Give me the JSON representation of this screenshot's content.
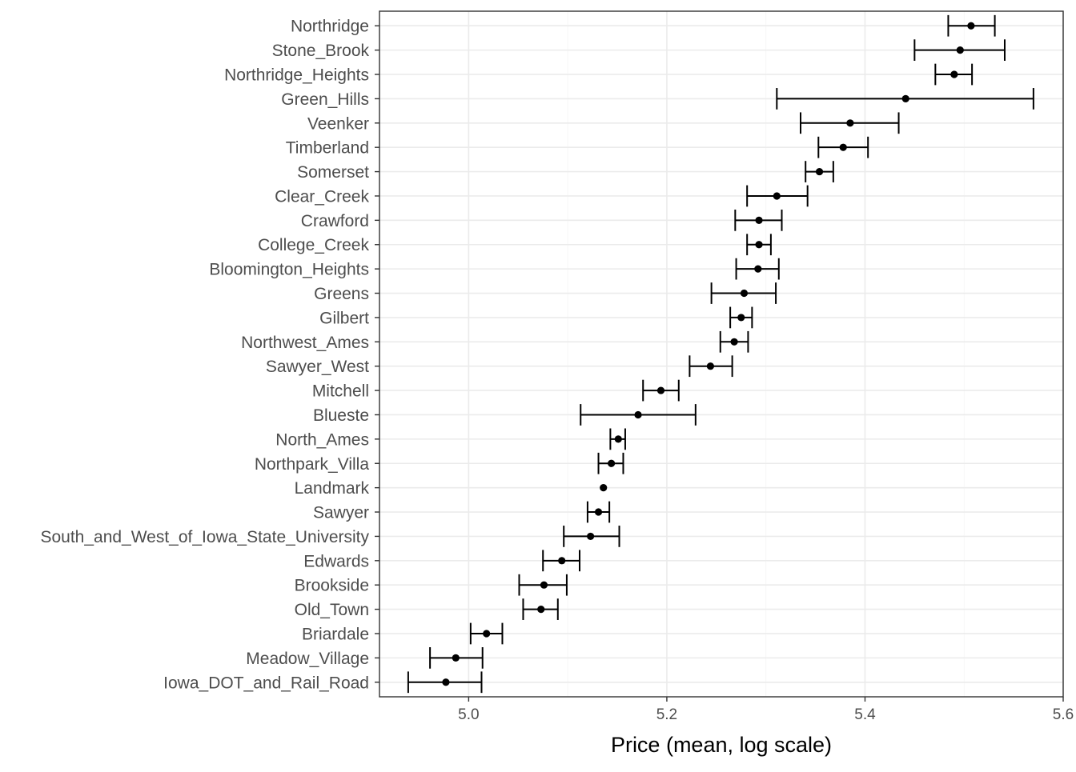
{
  "chart_data": {
    "type": "scatter",
    "subtype": "point-range (dot with error bars)",
    "xlabel": "Price (mean, log scale)",
    "ylabel": "",
    "xlim": [
      4.91,
      5.6
    ],
    "xticks": [
      5.0,
      5.2,
      5.4,
      5.6
    ],
    "xtick_labels": [
      "5.0",
      "5.2",
      "5.4",
      "5.6"
    ],
    "grid": true,
    "legend": "none",
    "point_color": "#000000",
    "categories": [
      "Northridge",
      "Stone_Brook",
      "Northridge_Heights",
      "Green_Hills",
      "Veenker",
      "Timberland",
      "Somerset",
      "Clear_Creek",
      "Crawford",
      "College_Creek",
      "Bloomington_Heights",
      "Greens",
      "Gilbert",
      "Northwest_Ames",
      "Sawyer_West",
      "Mitchell",
      "Blueste",
      "North_Ames",
      "Northpark_Villa",
      "Landmark",
      "Sawyer",
      "South_and_West_of_Iowa_State_University",
      "Edwards",
      "Brookside",
      "Old_Town",
      "Briardale",
      "Meadow_Village",
      "Iowa_DOT_and_Rail_Road"
    ],
    "mean": [
      5.507,
      5.496,
      5.49,
      5.441,
      5.385,
      5.378,
      5.354,
      5.311,
      5.293,
      5.293,
      5.292,
      5.278,
      5.275,
      5.268,
      5.244,
      5.194,
      5.171,
      5.151,
      5.144,
      5.136,
      5.131,
      5.123,
      5.094,
      5.076,
      5.073,
      5.018,
      4.987,
      4.977
    ],
    "lower": [
      5.484,
      5.45,
      5.471,
      5.311,
      5.335,
      5.353,
      5.34,
      5.281,
      5.269,
      5.281,
      5.27,
      5.245,
      5.264,
      5.254,
      5.223,
      5.176,
      5.113,
      5.143,
      5.131,
      5.136,
      5.12,
      5.096,
      5.075,
      5.051,
      5.055,
      5.002,
      4.961,
      4.939
    ],
    "upper": [
      5.531,
      5.541,
      5.508,
      5.57,
      5.434,
      5.403,
      5.368,
      5.342,
      5.316,
      5.305,
      5.313,
      5.31,
      5.286,
      5.282,
      5.266,
      5.212,
      5.229,
      5.158,
      5.156,
      5.136,
      5.142,
      5.152,
      5.112,
      5.099,
      5.09,
      5.034,
      5.014,
      5.013
    ]
  }
}
